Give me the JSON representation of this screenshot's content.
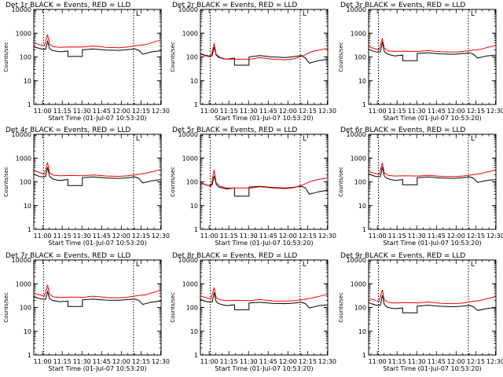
{
  "shared": {
    "ylabel": "Counts/sec",
    "xlabel": "Start Time (01-Jul-07 10:53:20)",
    "x_tick_labels": [
      "11:00",
      "11:15",
      "11:30",
      "11:45",
      "12:00",
      "12:15",
      "12:30"
    ],
    "y_tick_labels": [
      "1",
      "10",
      "100",
      "1000",
      "10000"
    ],
    "marker_label": "L",
    "colors": {
      "events": "#000000",
      "lld": "#ff0000",
      "axes": "#000000"
    }
  },
  "chart_data": [
    {
      "type": "line",
      "title": "Det 1r BLACK = Events, RED = LLD",
      "y_scale": "log",
      "ylim": [
        1,
        10000
      ],
      "x_unit": "minutes after 10:53:20",
      "xlim": [
        0,
        97
      ],
      "vlines": [
        7.5,
        76
      ],
      "series": [
        {
          "color": "events",
          "x": [
            0,
            3,
            6,
            9,
            10.5,
            12,
            14,
            17,
            20,
            26,
            26,
            37,
            37,
            45,
            55,
            65,
            72,
            77,
            80,
            83,
            83,
            90,
            97
          ],
          "y": [
            270,
            240,
            215,
            210,
            450,
            230,
            190,
            175,
            165,
            175,
            105,
            105,
            200,
            215,
            195,
            190,
            205,
            215,
            190,
            130,
            130,
            165,
            180
          ]
        },
        {
          "color": "lld",
          "x": [
            0,
            4,
            8,
            10.5,
            12,
            15,
            20,
            27,
            38,
            45,
            55,
            65,
            72,
            78,
            85,
            97
          ],
          "y": [
            390,
            330,
            290,
            880,
            340,
            270,
            255,
            265,
            260,
            290,
            255,
            245,
            265,
            300,
            330,
            520
          ]
        }
      ]
    },
    {
      "type": "line",
      "title": "Det 2r BLACK = Events, RED = LLD",
      "y_scale": "log",
      "ylim": [
        1,
        10000
      ],
      "x_unit": "minutes after 10:53:20",
      "xlim": [
        0,
        97
      ],
      "vlines": [
        7.5,
        76
      ],
      "series": [
        {
          "color": "events",
          "x": [
            0,
            3,
            6,
            9,
            10.5,
            12,
            14,
            17,
            20,
            26,
            26,
            37,
            37,
            45,
            55,
            65,
            72,
            77,
            80,
            83,
            83,
            90,
            97
          ],
          "y": [
            140,
            120,
            110,
            115,
            260,
            120,
            95,
            85,
            80,
            90,
            45,
            45,
            100,
            115,
            100,
            95,
            105,
            115,
            90,
            55,
            55,
            70,
            80
          ]
        },
        {
          "color": "lld",
          "x": [
            0,
            4,
            8,
            10.5,
            12,
            15,
            20,
            27,
            38,
            45,
            55,
            65,
            72,
            78,
            85,
            97
          ],
          "y": [
            130,
            110,
            100,
            380,
            130,
            95,
            80,
            80,
            80,
            95,
            80,
            75,
            85,
            110,
            170,
            230
          ]
        }
      ]
    },
    {
      "type": "line",
      "title": "Det 3r BLACK = Events, RED = LLD",
      "y_scale": "log",
      "ylim": [
        1,
        10000
      ],
      "x_unit": "minutes after 10:53:20",
      "xlim": [
        0,
        97
      ],
      "vlines": [
        7.5,
        76
      ],
      "series": [
        {
          "color": "events",
          "x": [
            0,
            3,
            6,
            9,
            10.5,
            12,
            14,
            17,
            20,
            26,
            26,
            37,
            37,
            45,
            55,
            65,
            72,
            77,
            80,
            83,
            83,
            90,
            97
          ],
          "y": [
            210,
            180,
            160,
            160,
            420,
            170,
            135,
            120,
            110,
            120,
            70,
            70,
            140,
            150,
            135,
            130,
            140,
            150,
            130,
            90,
            90,
            110,
            120
          ]
        },
        {
          "color": "lld",
          "x": [
            0,
            4,
            8,
            10.5,
            12,
            15,
            20,
            27,
            38,
            45,
            55,
            65,
            72,
            78,
            85,
            97
          ],
          "y": [
            270,
            230,
            200,
            600,
            230,
            180,
            170,
            175,
            170,
            185,
            165,
            160,
            170,
            190,
            210,
            310
          ]
        }
      ]
    },
    {
      "type": "line",
      "title": "Det 4r BLACK = Events, RED = LLD",
      "y_scale": "log",
      "ylim": [
        1,
        10000
      ],
      "x_unit": "minutes after 10:53:20",
      "xlim": [
        0,
        97
      ],
      "vlines": [
        7.5,
        76
      ],
      "series": [
        {
          "color": "events",
          "x": [
            0,
            3,
            6,
            9,
            10.5,
            12,
            14,
            17,
            20,
            26,
            26,
            37,
            37,
            45,
            55,
            65,
            72,
            77,
            80,
            83,
            83,
            90,
            97
          ],
          "y": [
            210,
            180,
            160,
            165,
            410,
            175,
            135,
            120,
            115,
            125,
            70,
            70,
            150,
            160,
            145,
            140,
            150,
            160,
            140,
            90,
            90,
            110,
            125
          ]
        },
        {
          "color": "lld",
          "x": [
            0,
            4,
            8,
            10.5,
            12,
            15,
            20,
            27,
            38,
            45,
            55,
            65,
            72,
            78,
            85,
            97
          ],
          "y": [
            290,
            250,
            210,
            640,
            240,
            190,
            180,
            185,
            180,
            195,
            175,
            170,
            180,
            200,
            230,
            330
          ]
        }
      ]
    },
    {
      "type": "line",
      "title": "Det 5r BLACK = Events, RED = LLD",
      "y_scale": "log",
      "ylim": [
        1,
        10000
      ],
      "x_unit": "minutes after 10:53:20",
      "xlim": [
        0,
        97
      ],
      "vlines": [
        7.5,
        76
      ],
      "series": [
        {
          "color": "events",
          "x": [
            0,
            3,
            6,
            9,
            10.5,
            12,
            14,
            17,
            20,
            26,
            26,
            37,
            37,
            45,
            55,
            65,
            72,
            77,
            80,
            83,
            83,
            90,
            97
          ],
          "y": [
            95,
            80,
            70,
            75,
            180,
            80,
            60,
            55,
            50,
            55,
            25,
            25,
            60,
            65,
            58,
            55,
            60,
            65,
            55,
            30,
            30,
            38,
            45
          ]
        },
        {
          "color": "lld",
          "x": [
            0,
            4,
            8,
            10.5,
            12,
            15,
            20,
            27,
            38,
            45,
            55,
            65,
            72,
            78,
            85,
            97
          ],
          "y": [
            90,
            75,
            65,
            320,
            90,
            65,
            55,
            55,
            55,
            62,
            55,
            52,
            58,
            75,
            110,
            150
          ]
        }
      ]
    },
    {
      "type": "line",
      "title": "Det 6r BLACK = Events, RED = LLD",
      "y_scale": "log",
      "ylim": [
        1,
        10000
      ],
      "x_unit": "minutes after 10:53:20",
      "xlim": [
        0,
        97
      ],
      "vlines": [
        7.5,
        76
      ],
      "series": [
        {
          "color": "events",
          "x": [
            0,
            3,
            6,
            9,
            10.5,
            12,
            14,
            17,
            20,
            26,
            26,
            37,
            37,
            45,
            55,
            65,
            72,
            77,
            80,
            83,
            83,
            90,
            97
          ],
          "y": [
            215,
            185,
            165,
            165,
            420,
            175,
            140,
            125,
            115,
            125,
            75,
            75,
            150,
            160,
            145,
            140,
            150,
            160,
            140,
            95,
            95,
            115,
            125
          ]
        },
        {
          "color": "lld",
          "x": [
            0,
            4,
            8,
            10.5,
            12,
            15,
            20,
            27,
            38,
            45,
            55,
            65,
            72,
            78,
            85,
            97
          ],
          "y": [
            270,
            235,
            205,
            620,
            235,
            185,
            175,
            180,
            175,
            190,
            170,
            165,
            175,
            195,
            220,
            320
          ]
        }
      ]
    },
    {
      "type": "line",
      "title": "Det 7r BLACK = Events, RED = LLD",
      "y_scale": "log",
      "ylim": [
        1,
        10000
      ],
      "x_unit": "minutes after 10:53:20",
      "xlim": [
        0,
        97
      ],
      "vlines": [
        7.5,
        76
      ],
      "series": [
        {
          "color": "events",
          "x": [
            0,
            3,
            6,
            9,
            10.5,
            12,
            14,
            17,
            20,
            26,
            26,
            37,
            37,
            45,
            55,
            65,
            72,
            77,
            80,
            83,
            83,
            90,
            97
          ],
          "y": [
            280,
            250,
            225,
            220,
            470,
            240,
            200,
            185,
            175,
            185,
            110,
            110,
            210,
            225,
            205,
            200,
            215,
            225,
            200,
            135,
            135,
            170,
            185
          ]
        },
        {
          "color": "lld",
          "x": [
            0,
            4,
            8,
            10.5,
            12,
            15,
            20,
            27,
            38,
            45,
            55,
            65,
            72,
            78,
            85,
            97
          ],
          "y": [
            400,
            340,
            300,
            900,
            350,
            280,
            265,
            275,
            270,
            300,
            265,
            255,
            275,
            310,
            340,
            540
          ]
        }
      ]
    },
    {
      "type": "line",
      "title": "Det 8r BLACK = Events, RED = LLD",
      "y_scale": "log",
      "ylim": [
        1,
        10000
      ],
      "x_unit": "minutes after 10:53:20",
      "xlim": [
        0,
        97
      ],
      "vlines": [
        7.5,
        76
      ],
      "series": [
        {
          "color": "events",
          "x": [
            0,
            3,
            6,
            9,
            10.5,
            12,
            14,
            17,
            20,
            26,
            26,
            37,
            37,
            45,
            55,
            65,
            72,
            77,
            80,
            83,
            83,
            90,
            97
          ],
          "y": [
            220,
            190,
            170,
            170,
            430,
            180,
            145,
            130,
            120,
            130,
            80,
            80,
            155,
            165,
            150,
            145,
            155,
            165,
            145,
            95,
            95,
            120,
            130
          ]
        },
        {
          "color": "lld",
          "x": [
            0,
            4,
            8,
            10.5,
            12,
            15,
            20,
            27,
            38,
            45,
            55,
            65,
            72,
            78,
            85,
            97
          ],
          "y": [
            300,
            260,
            225,
            700,
            260,
            210,
            195,
            200,
            195,
            215,
            190,
            185,
            195,
            215,
            250,
            360
          ]
        }
      ]
    },
    {
      "type": "line",
      "title": "Det 9r BLACK = Events, RED = LLD",
      "y_scale": "log",
      "ylim": [
        1,
        10000
      ],
      "x_unit": "minutes after 10:53:20",
      "xlim": [
        0,
        97
      ],
      "vlines": [
        7.5,
        76
      ],
      "series": [
        {
          "color": "events",
          "x": [
            0,
            3,
            6,
            9,
            10.5,
            12,
            14,
            17,
            20,
            26,
            26,
            37,
            37,
            45,
            55,
            65,
            72,
            77,
            80,
            83,
            83,
            90,
            97
          ],
          "y": [
            160,
            140,
            125,
            125,
            330,
            135,
            105,
            95,
            90,
            95,
            60,
            60,
            115,
            125,
            112,
            108,
            115,
            122,
            108,
            75,
            75,
            90,
            100
          ]
        },
        {
          "color": "lld",
          "x": [
            0,
            4,
            8,
            10.5,
            12,
            15,
            20,
            27,
            38,
            45,
            55,
            65,
            72,
            78,
            85,
            97
          ],
          "y": [
            240,
            210,
            180,
            560,
            210,
            165,
            155,
            160,
            155,
            170,
            150,
            145,
            155,
            175,
            200,
            290
          ]
        }
      ]
    }
  ]
}
